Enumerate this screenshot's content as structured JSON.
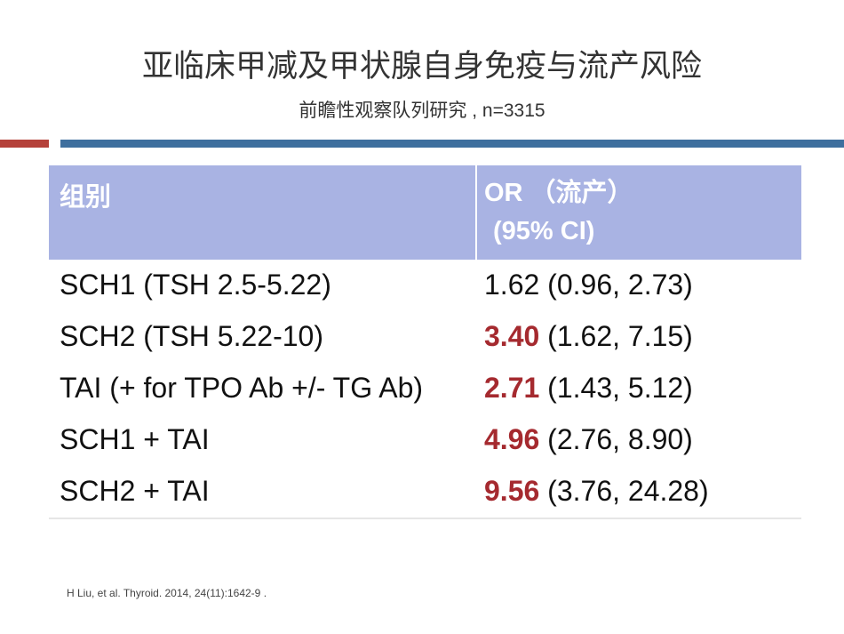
{
  "header": {
    "title": "亚临床甲减及甲状腺自身免疫与流产风险",
    "subtitle": "前瞻性观察队列研究 , n=3315"
  },
  "table": {
    "head": {
      "group": "组别",
      "or_lines": [
        "OR （流产）",
        "(95% CI)"
      ]
    },
    "rows": [
      {
        "group": "SCH1 (TSH 2.5-5.22)",
        "or": "1.62",
        "ci": "(0.96, 2.73)",
        "highlight": false
      },
      {
        "group": "SCH2 (TSH 5.22-10)",
        "or": "3.40",
        "ci": "(1.62, 7.15)",
        "highlight": true
      },
      {
        "group": "TAI (+ for TPO Ab +/- TG Ab)",
        "or": "2.71",
        "ci": "(1.43, 5.12)",
        "highlight": true
      },
      {
        "group": "SCH1 + TAI",
        "or": "4.96",
        "ci": "(2.76, 8.90)",
        "highlight": true
      },
      {
        "group": "SCH2 + TAI",
        "or": "9.56",
        "ci": "(3.76, 24.28)",
        "highlight": true
      }
    ]
  },
  "footnote": "H Liu, et al. Thyroid. 2014, 24(11):1642-9 ."
}
